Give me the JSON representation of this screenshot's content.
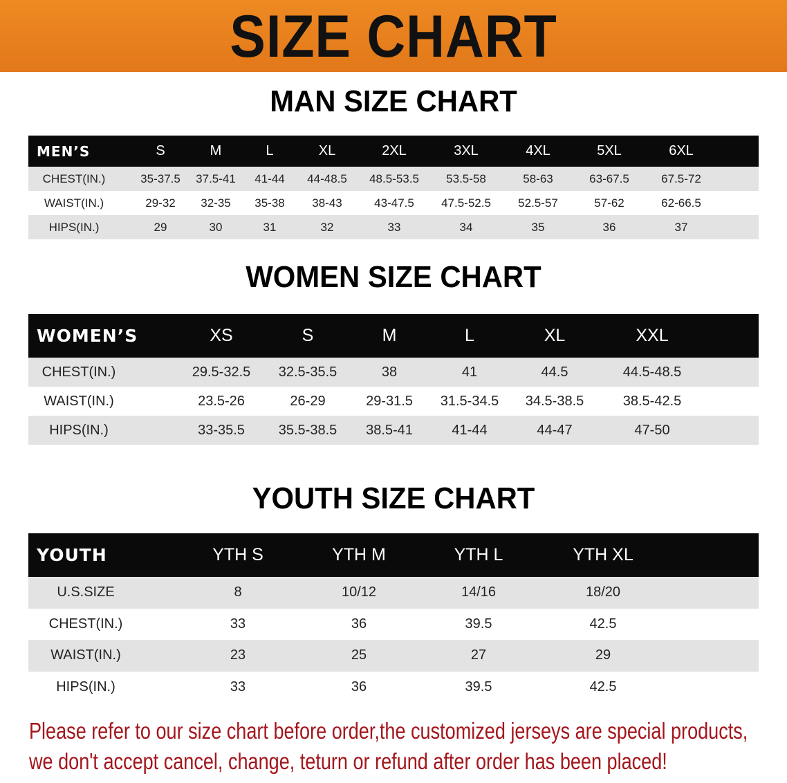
{
  "banner_title": "SIZE CHART",
  "men": {
    "title": "MAN SIZE CHART",
    "columns": [
      "MEN’S",
      "S",
      "M",
      "L",
      "XL",
      "2XL",
      "3XL",
      "4XL",
      "5XL",
      "6XL"
    ],
    "rows": [
      [
        "CHEST(IN.)",
        "35-37.5",
        "37.5-41",
        "41-44",
        "44-48.5",
        "48.5-53.5",
        "53.5-58",
        "58-63",
        "63-67.5",
        "67.5-72"
      ],
      [
        "WAIST(IN.)",
        "29-32",
        "32-35",
        "35-38",
        "38-43",
        "43-47.5",
        "47.5-52.5",
        "52.5-57",
        "57-62",
        "62-66.5"
      ],
      [
        "HIPS(IN.)",
        "29",
        "30",
        "31",
        "32",
        "33",
        "34",
        "35",
        "36",
        "37"
      ]
    ]
  },
  "women": {
    "title": "WOMEN SIZE CHART",
    "columns": [
      "WOMEN’S",
      "XS",
      "S",
      "M",
      "L",
      "XL",
      "XXL"
    ],
    "rows": [
      [
        "CHEST(IN.)",
        "29.5-32.5",
        "32.5-35.5",
        "38",
        "41",
        "44.5",
        "44.5-48.5"
      ],
      [
        "WAIST(IN.)",
        "23.5-26",
        "26-29",
        "29-31.5",
        "31.5-34.5",
        "34.5-38.5",
        "38.5-42.5"
      ],
      [
        "HIPS(IN.)",
        "33-35.5",
        "35.5-38.5",
        "38.5-41",
        "41-44",
        "44-47",
        "47-50"
      ]
    ]
  },
  "youth": {
    "title": "YOUTH SIZE CHART",
    "columns": [
      "YOUTH",
      "YTH S",
      "YTH M",
      "YTH L",
      "YTH XL"
    ],
    "rows": [
      [
        "U.S.SIZE",
        "8",
        "10/12",
        "14/16",
        "18/20"
      ],
      [
        "CHEST(IN.)",
        "33",
        "36",
        "39.5",
        "42.5"
      ],
      [
        "WAIST(IN.)",
        "23",
        "25",
        "27",
        "29"
      ],
      [
        "HIPS(IN.)",
        "33",
        "36",
        "39.5",
        "42.5"
      ]
    ]
  },
  "note": {
    "line1": "Please refer to our size chart before order,the customized jerseys are special products,",
    "line2": "we don't accept cancel, change, teturn or refund after order has been placed!"
  },
  "colors": {
    "banner": "#e8821e",
    "header": "#0a0a0a",
    "stripe": "#e3e3e3",
    "note": "#a3161c"
  }
}
